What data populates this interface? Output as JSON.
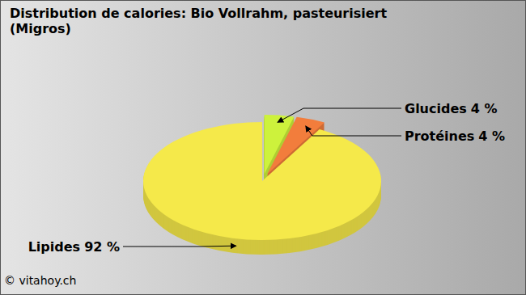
{
  "chart_data": {
    "type": "pie",
    "title": "Distribution de calories: Bio Vollrahm, pasteurisiert (Migros)",
    "categories": [
      "Glucides",
      "Protéines",
      "Lipides"
    ],
    "values": [
      4,
      4,
      92
    ],
    "value_labels": [
      "4 %",
      "4 %",
      "92 %"
    ],
    "colors": [
      "#cdf23c",
      "#f27d3c",
      "#f5e94a"
    ],
    "data_labels": true,
    "annotations": [
      "© vitahoy.ch"
    ]
  }
}
